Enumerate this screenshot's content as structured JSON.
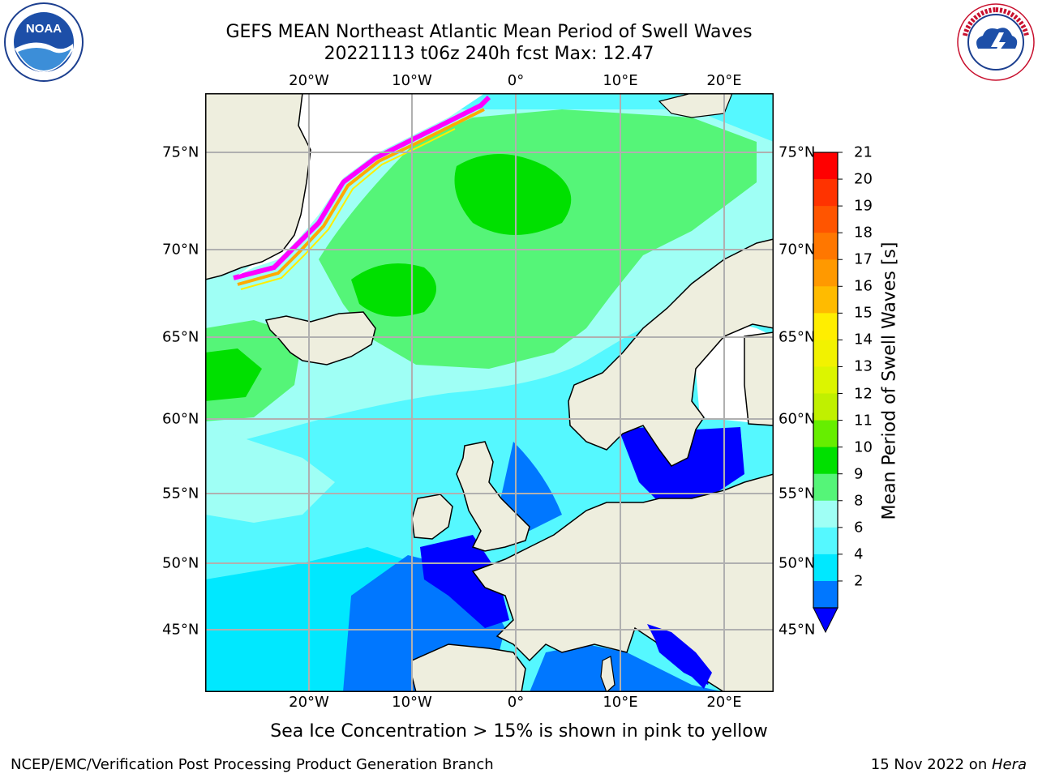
{
  "header": {
    "title": "GEFS MEAN Northeast Atlantic Mean Period of Swell Waves",
    "subtitle": "20221113 t06z 240h fcst   Max: 12.47"
  },
  "map": {
    "lon_labels": [
      "20°W",
      "10°W",
      "0°",
      "10°E",
      "20°E"
    ],
    "lat_labels": [
      "75°N",
      "70°N",
      "65°N",
      "60°N",
      "55°N",
      "50°N",
      "45°N"
    ],
    "gridlines": true
  },
  "colorbar": {
    "title": "Mean Period of Swell Waves [s]",
    "ticks": [
      "21",
      "20",
      "19",
      "18",
      "17",
      "16",
      "15",
      "14",
      "13",
      "12",
      "11",
      "10",
      "9",
      "8",
      "6",
      "4",
      "2"
    ],
    "bins": [
      {
        "color": "#ff0000"
      },
      {
        "color": "#ff3300"
      },
      {
        "color": "#ff5500"
      },
      {
        "color": "#ff7700"
      },
      {
        "color": "#ff9900"
      },
      {
        "color": "#ffbb00"
      },
      {
        "color": "#ffee00"
      },
      {
        "color": "#f2f200"
      },
      {
        "color": "#dcf500"
      },
      {
        "color": "#c0f000"
      },
      {
        "color": "#66ee00"
      },
      {
        "color": "#00e000"
      },
      {
        "color": "#55f578"
      },
      {
        "color": "#9ffff5"
      },
      {
        "color": "#55f8ff"
      },
      {
        "color": "#00e8ff"
      },
      {
        "color": "#0077ff"
      }
    ],
    "extend_color": "#0000ff"
  },
  "note": "Sea Ice Concentration > 15% is shown in pink to yellow",
  "footer": {
    "left": "NCEP/EMC/Verification Post Processing Product Generation Branch",
    "right_prefix": "15 Nov 2022 on ",
    "right_host": "Hera"
  },
  "logos": {
    "left": "NOAA",
    "right": "NATIONAL WEATHER SERVICE"
  },
  "colors": {
    "land": "#eeeede",
    "grid": "#b0b0b0",
    "unshaded": "#ffffff"
  }
}
